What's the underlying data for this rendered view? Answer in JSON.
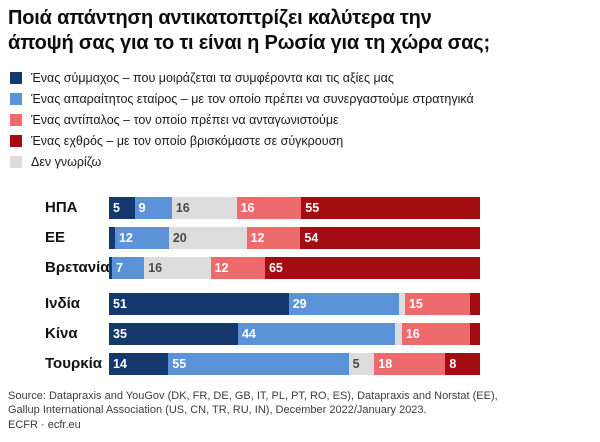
{
  "title": "Ποιά απάντηση αντικατοπτρίζει καλύτερα την\nάποψή σας για το τι είναι η Ρωσία για τη χώρα σας;",
  "legend": [
    {
      "key": "ally",
      "label": "Ένας σύμμαχος – που μοιράζεται τα συμφέροντα και τις αξίες μας",
      "color": "#15396d"
    },
    {
      "key": "partner",
      "label": "Ένας απαραίτητος εταίρος – με τον οποίο πρέπει να συνεργαστούμε στρατηγικά",
      "color": "#5b92d8"
    },
    {
      "key": "rival",
      "label": "Ένας αντίπαλος – τον οποίο πρέπει να ανταγωνιστούμε",
      "color": "#ed6b6c"
    },
    {
      "key": "enemy",
      "label": "Ένας εχθρός – με τον οποίο βρισκόμαστε σε σύγκρουση",
      "color": "#a30c10"
    },
    {
      "key": "dont_know",
      "label": "Δεν γνωρίζω",
      "color": "#dcdcdc"
    }
  ],
  "chart_data": {
    "type": "bar",
    "orientation": "horizontal-stacked",
    "unit": "percent",
    "axis_range": [
      0,
      100
    ],
    "grid": false,
    "legend_position": "top-left",
    "categories": [
      "ΗΠΑ",
      "ΕΕ",
      "Βρετανία",
      "Ινδία",
      "Κίνα",
      "Τουρκία"
    ],
    "group_gap_before": "Ινδία",
    "stack_order": [
      "ally",
      "partner",
      "dont_know",
      "rival",
      "enemy"
    ],
    "series": [
      {
        "key": "ally",
        "name": "Ένας σύμμαχος – που μοιράζεται τα συμφέροντα και τις αξίες μας",
        "color": "#15396d",
        "text_color": "#ffffff",
        "values": [
          5,
          2,
          1,
          51,
          35,
          14
        ],
        "labels": [
          "5",
          "",
          "",
          "51",
          "35",
          "14"
        ]
      },
      {
        "key": "partner",
        "name": "Ένας απαραίτητος εταίρος – με τον οποίο πρέπει να συνεργαστούμε στρατηγικά",
        "color": "#5b92d8",
        "text_color": "#ffffff",
        "values": [
          9,
          12,
          7,
          29,
          44,
          55
        ],
        "labels": [
          "9",
          "12",
          "7",
          "29",
          "44",
          "55"
        ]
      },
      {
        "key": "dont_know",
        "name": "Δεν γνωρίζω",
        "color": "#dcdcdc",
        "text_color": "#4a4a4a",
        "values": [
          16,
          20,
          16,
          2,
          2,
          5
        ],
        "labels": [
          "16",
          "20",
          "16",
          "",
          "",
          "5"
        ]
      },
      {
        "key": "rival",
        "name": "Ένας αντίπαλος – τον οποίο πρέπει να ανταγωνιστούμε",
        "color": "#ed6b6c",
        "text_color": "#ffffff",
        "values": [
          16,
          12,
          12,
          15,
          16,
          18
        ],
        "labels": [
          "16",
          "12",
          "12",
          "15",
          "16",
          "18"
        ]
      },
      {
        "key": "enemy",
        "name": "Ένας εχθρός – με τον οποίο βρισκόμαστε σε σύγκρουση",
        "color": "#a30c10",
        "text_color": "#ffffff",
        "values": [
          55,
          54,
          65,
          3,
          3,
          8
        ],
        "labels": [
          "55",
          "54",
          "65",
          "",
          "",
          "8"
        ]
      }
    ]
  },
  "source": {
    "line1": "Source: Datapraxis and YouGov (DK, FR, DE, GB, IT, PL, PT, RO, ES), Datapraxis and Norstat (EE),",
    "line2": "Gallup International Association (US, CN, TR, RU, IN), December 2022/January 2023.",
    "line3": "ECFR · ecfr.eu"
  }
}
